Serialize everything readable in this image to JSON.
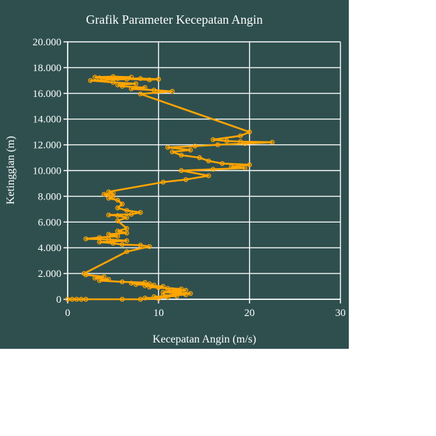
{
  "chart_data": {
    "type": "line",
    "title": "Grafik Parameter Kecepatan Angin",
    "xlabel": "Kecepatan Angin (m/s)",
    "ylabel": "Ketinggian (m)",
    "xlim": [
      0,
      30
    ],
    "ylim": [
      0,
      20000
    ],
    "x_ticks": [
      0,
      10,
      20,
      30
    ],
    "x_tick_labels": [
      "0",
      "10",
      "20",
      "30"
    ],
    "y_ticks": [
      0,
      2000,
      4000,
      6000,
      8000,
      10000,
      12000,
      14000,
      16000,
      18000,
      20000
    ],
    "y_tick_labels": [
      "0",
      "2.000",
      "4.000",
      "6.000",
      "8.000",
      "10.000",
      "12.000",
      "14.000",
      "16.000",
      "18.000",
      "20.000"
    ],
    "grid": true,
    "colors": {
      "background": "#2f4f4f",
      "series": "#ffa500",
      "text": "#ffffff",
      "grid": "#ffffff"
    },
    "series": [
      {
        "marker": "circle",
        "points": [
          [
            0,
            0
          ],
          [
            0.5,
            0
          ],
          [
            1,
            0
          ],
          [
            1.5,
            0
          ],
          [
            2,
            0
          ],
          [
            6,
            0
          ],
          [
            8,
            0
          ],
          [
            10,
            50
          ],
          [
            8.5,
            100
          ],
          [
            11,
            150
          ],
          [
            9.5,
            200
          ],
          [
            12,
            250
          ],
          [
            10.5,
            300
          ],
          [
            13,
            350
          ],
          [
            11.5,
            400
          ],
          [
            13.5,
            450
          ],
          [
            12,
            500
          ],
          [
            10.5,
            550
          ],
          [
            12.5,
            600
          ],
          [
            11,
            650
          ],
          [
            13,
            700
          ],
          [
            11.5,
            750
          ],
          [
            12.5,
            800
          ],
          [
            11,
            850
          ],
          [
            10,
            900
          ],
          [
            9,
            950
          ],
          [
            10.5,
            1000
          ],
          [
            8.5,
            1050
          ],
          [
            9.5,
            1100
          ],
          [
            7.5,
            1150
          ],
          [
            9,
            1200
          ],
          [
            7,
            1250
          ],
          [
            8.5,
            1300
          ],
          [
            6,
            1350
          ],
          [
            3.5,
            1450
          ],
          [
            4.5,
            1550
          ],
          [
            3,
            1650
          ],
          [
            4,
            1750
          ],
          [
            2,
            1900
          ],
          [
            1.8,
            2000
          ],
          [
            6.5,
            3700
          ],
          [
            9,
            4100
          ],
          [
            8,
            4200
          ],
          [
            6,
            4250
          ],
          [
            5,
            4350
          ],
          [
            3.5,
            4450
          ],
          [
            6.5,
            4550
          ],
          [
            4.5,
            4650
          ],
          [
            2,
            4700
          ],
          [
            3.5,
            4800
          ],
          [
            5.5,
            4900
          ],
          [
            4.5,
            5050
          ],
          [
            6.5,
            5150
          ],
          [
            5.5,
            5300
          ],
          [
            6.5,
            5500
          ],
          [
            5.5,
            6100
          ],
          [
            6.5,
            6350
          ],
          [
            5.5,
            6500
          ],
          [
            4.5,
            6550
          ],
          [
            7,
            6600
          ],
          [
            8,
            6750
          ],
          [
            6.5,
            6900
          ],
          [
            5.5,
            7100
          ],
          [
            6,
            7400
          ],
          [
            5.5,
            7700
          ],
          [
            4.5,
            7850
          ],
          [
            5,
            8000
          ],
          [
            4,
            8150
          ],
          [
            5,
            8250
          ],
          [
            4.5,
            8350
          ],
          [
            10.5,
            9100
          ],
          [
            13,
            9300
          ],
          [
            15.5,
            9600
          ],
          [
            12.5,
            10000
          ],
          [
            16,
            10100
          ],
          [
            19.5,
            10200
          ],
          [
            18,
            10300
          ],
          [
            20,
            10450
          ],
          [
            17,
            10550
          ],
          [
            15.5,
            10750
          ],
          [
            14.5,
            11000
          ],
          [
            12.5,
            11200
          ],
          [
            11.5,
            11450
          ],
          [
            13.5,
            11600
          ],
          [
            11,
            11800
          ],
          [
            14,
            11900
          ],
          [
            16.5,
            12000
          ],
          [
            19.5,
            12100
          ],
          [
            22.5,
            12200
          ],
          [
            19,
            12250
          ],
          [
            17.5,
            12300
          ],
          [
            16,
            12400
          ],
          [
            19,
            12700
          ],
          [
            20,
            13000
          ],
          [
            8,
            15950
          ],
          [
            11.5,
            16150
          ],
          [
            9.5,
            16250
          ],
          [
            7,
            16350
          ],
          [
            8.5,
            16450
          ],
          [
            6,
            16550
          ],
          [
            5.5,
            16650
          ],
          [
            7.5,
            16750
          ],
          [
            5,
            16850
          ],
          [
            2.5,
            17000
          ],
          [
            6.5,
            17100
          ],
          [
            3.5,
            17200
          ],
          [
            8,
            17150
          ],
          [
            10,
            17100
          ],
          [
            9,
            17050
          ],
          [
            5.5,
            17150
          ],
          [
            3,
            17250
          ],
          [
            5,
            17300
          ],
          [
            7,
            17250
          ]
        ]
      }
    ]
  }
}
